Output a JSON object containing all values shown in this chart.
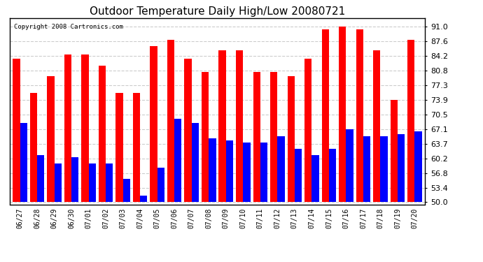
{
  "title": "Outdoor Temperature Daily High/Low 20080721",
  "copyright": "Copyright 2008 Cartronics.com",
  "dates": [
    "06/27",
    "06/28",
    "06/29",
    "06/30",
    "07/01",
    "07/02",
    "07/03",
    "07/04",
    "07/05",
    "07/06",
    "07/07",
    "07/08",
    "07/09",
    "07/10",
    "07/11",
    "07/12",
    "07/13",
    "07/14",
    "07/15",
    "07/16",
    "07/17",
    "07/18",
    "07/19",
    "07/20"
  ],
  "highs": [
    83.5,
    75.5,
    79.5,
    84.5,
    84.5,
    82.0,
    75.5,
    75.5,
    86.5,
    88.0,
    83.5,
    80.5,
    85.5,
    85.5,
    80.5,
    80.5,
    79.5,
    83.5,
    90.5,
    91.0,
    90.5,
    85.5,
    74.0,
    88.0
  ],
  "lows": [
    68.5,
    61.0,
    59.0,
    60.5,
    59.0,
    59.0,
    55.5,
    51.5,
    58.0,
    69.5,
    68.5,
    65.0,
    64.5,
    64.0,
    64.0,
    65.5,
    62.5,
    61.0,
    62.5,
    67.1,
    65.5,
    65.5,
    66.0,
    66.5
  ],
  "high_color": "#FF0000",
  "low_color": "#0000FF",
  "yticks": [
    50.0,
    53.4,
    56.8,
    60.2,
    63.7,
    67.1,
    70.5,
    73.9,
    77.3,
    80.8,
    84.2,
    87.6,
    91.0
  ],
  "ylim": [
    49.5,
    93.0
  ],
  "background_color": "#FFFFFF",
  "grid_color": "#CCCCCC",
  "bar_width": 0.42
}
